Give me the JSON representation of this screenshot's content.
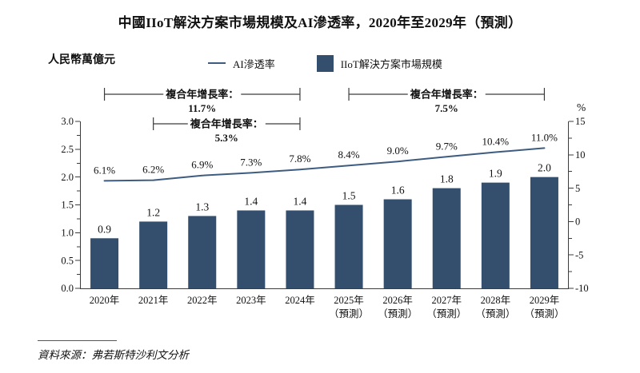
{
  "page": {
    "title": "中國IIoT解決方案市場規模及AI滲透率，2020年至2029年（預測）",
    "unit_label": "人民幣萬億元",
    "right_unit": "%",
    "source": "資料來源：弗若斯特沙利文分析"
  },
  "legend": {
    "line_label": "AI滲透率",
    "bar_label": "IIoT解決方案市場規模"
  },
  "colors": {
    "bar": "#344F6D",
    "line": "#3E5C80",
    "axis": "#3C3C3C",
    "text": "#111111"
  },
  "chart_data": {
    "type": "combo: bar (left axis) + line (right axis)",
    "title": "中國IIoT解決方案市場規模及AI滲透率，2020年至2029年（預測）",
    "categories": [
      {
        "label": "2020年",
        "sub": ""
      },
      {
        "label": "2021年",
        "sub": ""
      },
      {
        "label": "2022年",
        "sub": ""
      },
      {
        "label": "2023年",
        "sub": ""
      },
      {
        "label": "2024年",
        "sub": ""
      },
      {
        "label": "2025年",
        "sub": "（預測）"
      },
      {
        "label": "2026年",
        "sub": "（預測）"
      },
      {
        "label": "2027年",
        "sub": "（預測）"
      },
      {
        "label": "2028年",
        "sub": "（預測）"
      },
      {
        "label": "2029年",
        "sub": "（預測）"
      }
    ],
    "series": [
      {
        "name": "IIoT解決方案市場規模",
        "type": "bar",
        "axis": "left",
        "values": [
          0.9,
          1.2,
          1.3,
          1.4,
          1.4,
          1.5,
          1.6,
          1.8,
          1.9,
          2.0
        ],
        "labels": [
          "0.9",
          "1.2",
          "1.3",
          "1.4",
          "1.4",
          "1.5",
          "1.6",
          "1.8",
          "1.9",
          "2.0"
        ]
      },
      {
        "name": "AI滲透率",
        "type": "line",
        "axis": "right",
        "values": [
          6.1,
          6.2,
          6.9,
          7.3,
          7.8,
          8.4,
          9.0,
          9.7,
          10.4,
          11.0
        ],
        "labels": [
          "6.1%",
          "6.2%",
          "6.9%",
          "7.3%",
          "7.8%",
          "8.4%",
          "9.0%",
          "9.7%",
          "10.4%",
          "11.0%"
        ]
      }
    ],
    "left_axis": {
      "title": "人民幣萬億元",
      "min": 0,
      "max": 3,
      "major_step": 0.5,
      "minor_step": 0.25,
      "tick_labels": [
        "0.0",
        "0.5",
        "1.0",
        "1.5",
        "2.0",
        "2.5",
        "3.0"
      ]
    },
    "right_axis": {
      "title": "%",
      "min": -10,
      "max": 15,
      "major_step": 5,
      "minor_step": 2.5,
      "tick_labels": [
        "-10",
        "-5",
        "0",
        "5",
        "10",
        "15"
      ]
    },
    "cagr_brackets": [
      {
        "label": "複合年增長率：",
        "value": "11.7%",
        "from_index": 0,
        "to_index": 4,
        "row": 0
      },
      {
        "label": "複合年增長率：",
        "value": "5.3%",
        "from_index": 1,
        "to_index": 4,
        "row": 1
      },
      {
        "label": "複合年增長率：",
        "value": "7.5%",
        "from_index": 5,
        "to_index": 9,
        "row": 0
      }
    ],
    "source": "資料來源：弗若斯特沙利文分析",
    "layout_hints": {
      "grid": false,
      "legend_position": "top"
    }
  }
}
